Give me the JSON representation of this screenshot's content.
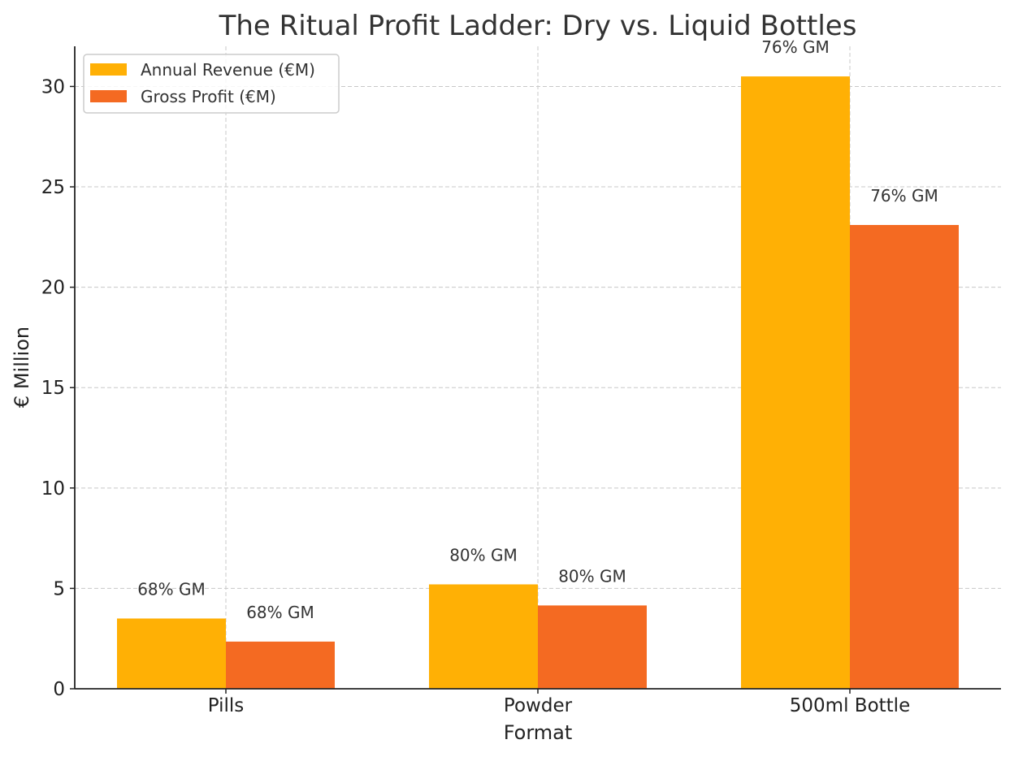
{
  "chart_data": {
    "type": "bar",
    "title": "The Ritual Profit Ladder: Dry vs. Liquid Bottles",
    "xlabel": "Format",
    "ylabel": "€ Million",
    "categories": [
      "Pills",
      "Powder",
      "500ml Bottle"
    ],
    "series": [
      {
        "name": "Annual Revenue (€M)",
        "color": "#FFB005",
        "values": [
          3.5,
          5.2,
          30.5
        ],
        "labels": [
          "68% GM",
          "80% GM",
          "76% GM"
        ]
      },
      {
        "name": "Gross Profit (€M)",
        "color": "#F46A22",
        "values": [
          2.35,
          4.15,
          23.1
        ],
        "labels": [
          "68% GM",
          "80% GM",
          "76% GM"
        ]
      }
    ],
    "ylim": [
      0,
      32
    ],
    "yticks": [
      0,
      5,
      10,
      15,
      20,
      25,
      30
    ],
    "grid": true,
    "legend_position": "top-left"
  }
}
